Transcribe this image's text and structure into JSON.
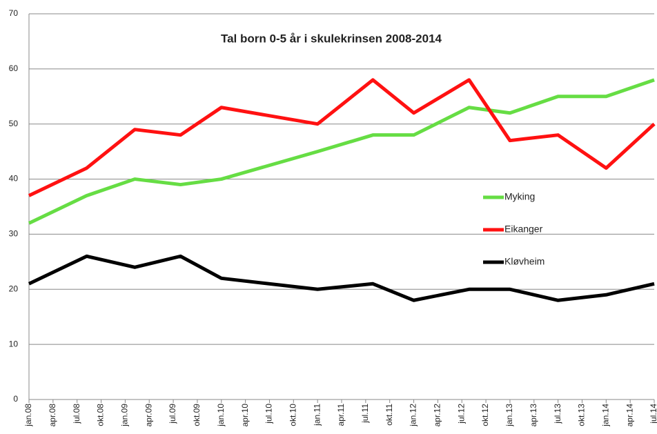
{
  "chart_data": {
    "type": "line",
    "title": "Tal born 0-5 år i skulekrinsen 2008-2014",
    "x": [
      0,
      2.4,
      4.4,
      6.3,
      8,
      12,
      14.3,
      16,
      18.3,
      20,
      22,
      24,
      26
    ],
    "xlim": [
      0,
      26
    ],
    "xticks": [
      {
        "value": 0,
        "label": "jan.08"
      },
      {
        "value": 1,
        "label": "apr.08"
      },
      {
        "value": 2,
        "label": "jul.08"
      },
      {
        "value": 3,
        "label": "okt.08"
      },
      {
        "value": 4,
        "label": "jan.09"
      },
      {
        "value": 5,
        "label": "apr.09"
      },
      {
        "value": 6,
        "label": "jul.09"
      },
      {
        "value": 7,
        "label": "okt.09"
      },
      {
        "value": 8,
        "label": "jan.10"
      },
      {
        "value": 9,
        "label": "apr.10"
      },
      {
        "value": 10,
        "label": "jul.10"
      },
      {
        "value": 11,
        "label": "okt.10"
      },
      {
        "value": 12,
        "label": "jan.11"
      },
      {
        "value": 13,
        "label": "apr.11"
      },
      {
        "value": 14,
        "label": "jul.11"
      },
      {
        "value": 15,
        "label": "okt.11"
      },
      {
        "value": 16,
        "label": "jan.12"
      },
      {
        "value": 17,
        "label": "apr.12"
      },
      {
        "value": 18,
        "label": "jul.12"
      },
      {
        "value": 19,
        "label": "okt.12"
      },
      {
        "value": 20,
        "label": "jan.13"
      },
      {
        "value": 21,
        "label": "apr.13"
      },
      {
        "value": 22,
        "label": "jul.13"
      },
      {
        "value": 23,
        "label": "okt.13"
      },
      {
        "value": 24,
        "label": "jan.14"
      },
      {
        "value": 25,
        "label": "apr.14"
      },
      {
        "value": 26,
        "label": "jul.14"
      }
    ],
    "ylim": [
      0,
      70
    ],
    "yticks": [
      0,
      10,
      20,
      30,
      40,
      50,
      60,
      70
    ],
    "grid": true,
    "series": [
      {
        "name": "Myking",
        "color": "#66dd44",
        "values": [
          32,
          37,
          40,
          39,
          40,
          45,
          48,
          48,
          53,
          52,
          55,
          55,
          58
        ]
      },
      {
        "name": "Eikanger",
        "color": "#ff1111",
        "values": [
          37,
          42,
          49,
          48,
          53,
          50,
          58,
          52,
          58,
          47,
          48,
          42,
          50
        ]
      },
      {
        "name": "Kløvheim",
        "color": "#000000",
        "values": [
          21,
          26,
          24,
          26,
          22,
          20,
          21,
          18,
          20,
          20,
          18,
          19,
          21
        ]
      }
    ]
  }
}
